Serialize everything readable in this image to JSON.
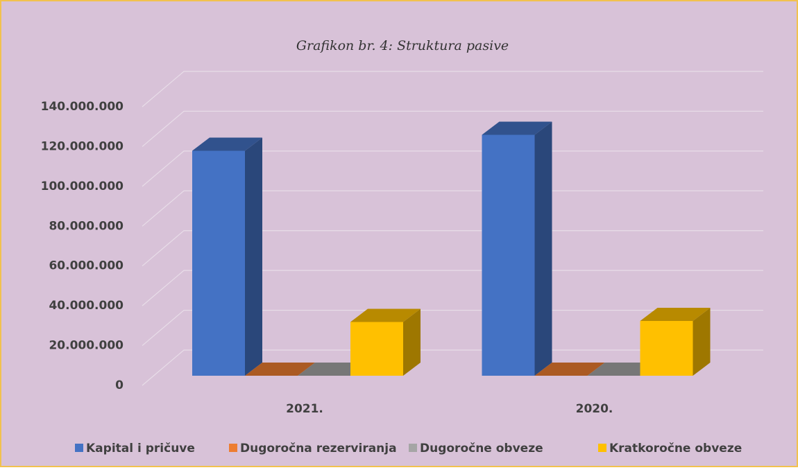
{
  "chart_data": {
    "type": "bar3d",
    "title": "Grafikon br. 4: Struktura pasive",
    "categories": [
      "2021.",
      "2020."
    ],
    "series": [
      {
        "name": "Kapital i pričuve",
        "color": "#4472c4",
        "values": [
          113000000,
          121000000
        ]
      },
      {
        "name": "Dugoročna rezerviranja",
        "color": "#ed7d31",
        "values": [
          0,
          0
        ]
      },
      {
        "name": "Dugoročne obveze",
        "color": "#a5a5a5",
        "values": [
          0,
          0
        ]
      },
      {
        "name": "Kratkoročne obveze",
        "color": "#ffc000",
        "values": [
          27000000,
          27500000
        ]
      }
    ],
    "ylim": [
      0,
      140000000
    ],
    "yticks": [
      0,
      {
        "value": 20000000,
        "label": "20.000.000"
      },
      {
        "value": 40000000,
        "label": "40.000.000"
      },
      {
        "value": 60000000,
        "label": "60.000.000"
      },
      {
        "value": 80000000,
        "label": "80.000.000"
      },
      {
        "value": 100000000,
        "label": "100.000.000"
      },
      {
        "value": 120000000,
        "label": "120.000.000"
      },
      {
        "value": 140000000,
        "label": "140.000.000"
      }
    ],
    "grid": true,
    "legend": "bottom"
  }
}
